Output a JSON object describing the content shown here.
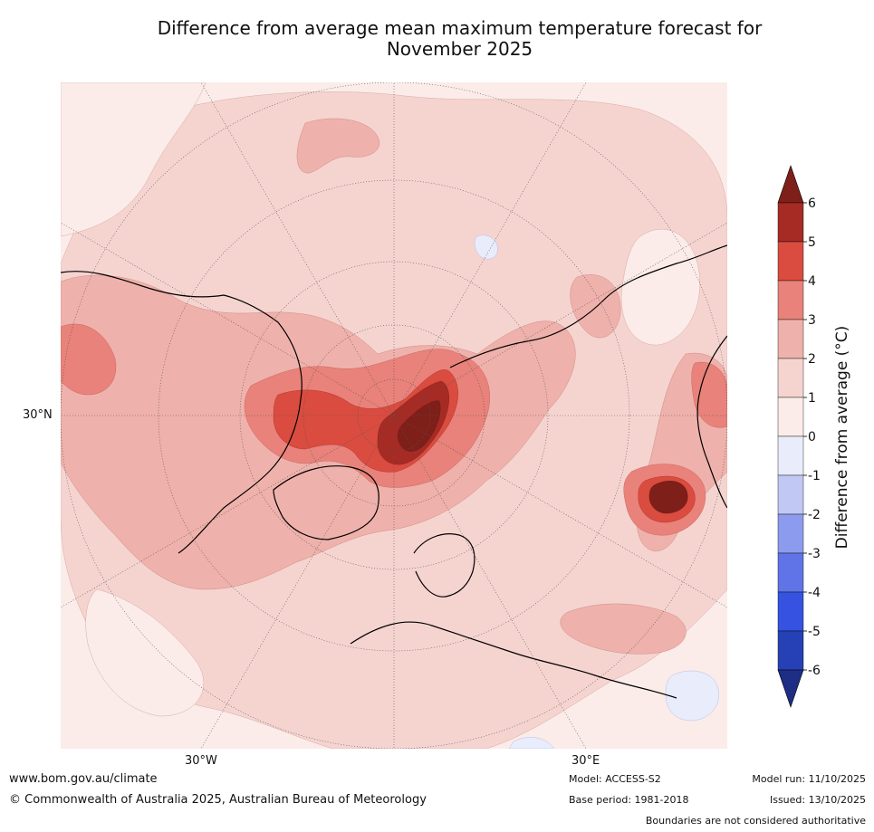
{
  "title": {
    "line1": "Difference from average mean maximum temperature forecast for",
    "line2": "November 2025"
  },
  "map": {
    "projection": "north-polar-stereographic",
    "lat_label": "30°N",
    "lon_labels": [
      "30°W",
      "30°E"
    ]
  },
  "colorbar": {
    "label": "Difference from average (°C)",
    "ticks": [
      "6",
      "5",
      "4",
      "3",
      "2",
      "1",
      "0",
      "-1",
      "-2",
      "-3",
      "-4",
      "-5",
      "-6"
    ],
    "colors_warm": [
      "#7f1f1a",
      "#a62b24",
      "#d94c3f",
      "#e8827a",
      "#efb1ab",
      "#f5d4d0",
      "#fbece9"
    ],
    "colors_cool": [
      "#e8ecfb",
      "#c0c8f3",
      "#8d9bee",
      "#6074e8",
      "#3553e0",
      "#2541b5",
      "#1e2e85"
    ]
  },
  "footer": {
    "url": "www.bom.gov.au/climate",
    "copyright": "© Commonwealth of Australia 2025, Australian Bureau of Meteorology",
    "model": "Model: ACCESS-S2",
    "base_period": "Base period: 1981-2018",
    "model_run": "Model run: 11/10/2025",
    "issued": "Issued: 13/10/2025",
    "disclaimer": "Boundaries are not considered authoritative"
  }
}
